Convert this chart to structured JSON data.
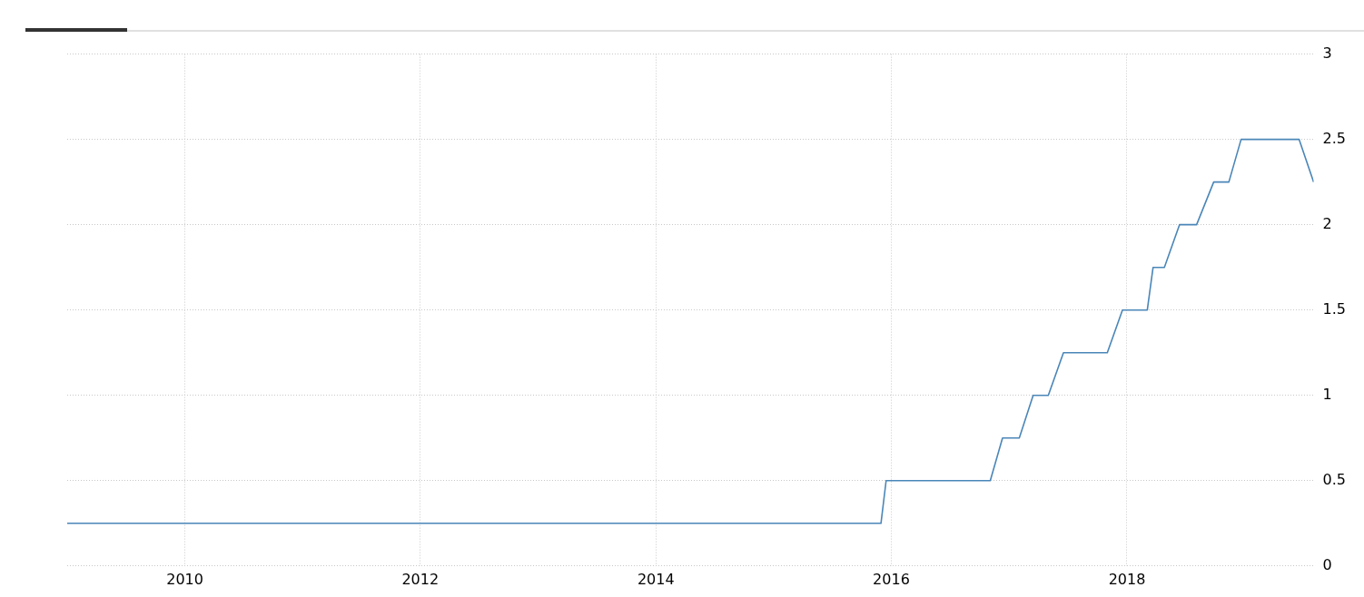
{
  "chart_data": {
    "type": "line",
    "x": [
      "2009-01-01",
      "2015-11-30",
      "2015-12-16",
      "2016-11-03",
      "2016-12-11",
      "2017-02-01",
      "2017-03-16",
      "2017-05-02",
      "2017-06-18",
      "2017-11-01",
      "2017-12-18",
      "2018-03-05",
      "2018-03-23",
      "2018-04-27",
      "2018-06-13",
      "2018-08-05",
      "2018-09-27",
      "2018-11-13",
      "2018-12-21",
      "2019-06-19",
      "2019-08-03"
    ],
    "series": [
      {
        "color": "#4a86b8",
        "values": [
          0.25,
          0.25,
          0.5,
          0.5,
          0.75,
          0.75,
          1,
          1,
          1.25,
          1.25,
          1.5,
          1.5,
          1.75,
          1.75,
          2,
          2,
          2.25,
          2.25,
          2.5,
          2.5,
          2.25
        ]
      }
    ],
    "xlim": [
      "2009-01-01",
      "2019-08-03"
    ],
    "xticks": [
      {
        "value": "2010-01-01",
        "label": "2010"
      },
      {
        "value": "2012-01-01",
        "label": "2012"
      },
      {
        "value": "2014-01-01",
        "label": "2014"
      },
      {
        "value": "2016-01-01",
        "label": "2016"
      },
      {
        "value": "2018-01-01",
        "label": "2018"
      }
    ],
    "ylim": [
      0,
      3
    ],
    "yticks": [
      0,
      0.5,
      1,
      1.5,
      2,
      2.5,
      3
    ],
    "grid": true,
    "legend": false,
    "marker": "none",
    "line_style": "solid"
  }
}
